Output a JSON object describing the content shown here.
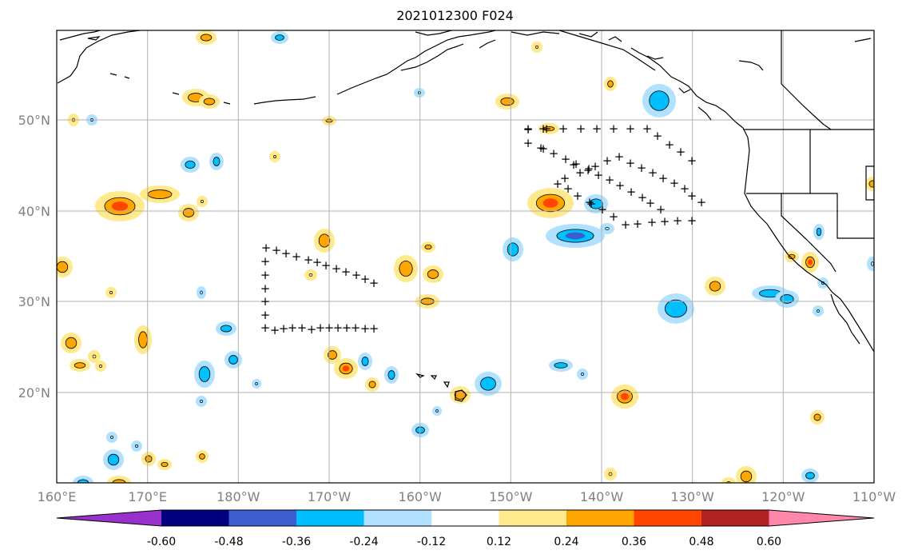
{
  "title": "2021012300 F024",
  "x_ticks": [
    "160°E",
    "170°E",
    "180°W",
    "170°W",
    "160°W",
    "150°W",
    "140°W",
    "130°W",
    "120°W",
    "110°W"
  ],
  "y_ticks": [
    "50°N",
    "40°N",
    "30°N",
    "20°N"
  ],
  "colorbar": {
    "labels": [
      "-0.60",
      "-0.48",
      "-0.36",
      "-0.24",
      "-0.12",
      "0.12",
      "0.24",
      "0.36",
      "0.48",
      "0.60"
    ],
    "colors": [
      "#9932CC",
      "#000080",
      "#3A5FCD",
      "#00BFFF",
      "#B0E2FF",
      "#FFFFFF",
      "#FFE98A",
      "#FFA500",
      "#FF4500",
      "#B22222",
      "#FF88AA"
    ]
  },
  "colors": {
    "pos_light": "#FFE98A",
    "pos_mid": "#FFA500",
    "pos_high": "#FF4500",
    "neg_light": "#B0E2FF",
    "neg_mid": "#00BFFF",
    "neg_high": "#3A5FCD",
    "neg_max": "#6A3FCD",
    "grid": "#B0B0B0",
    "coast": "#000000"
  },
  "observation_symbol": "+"
}
